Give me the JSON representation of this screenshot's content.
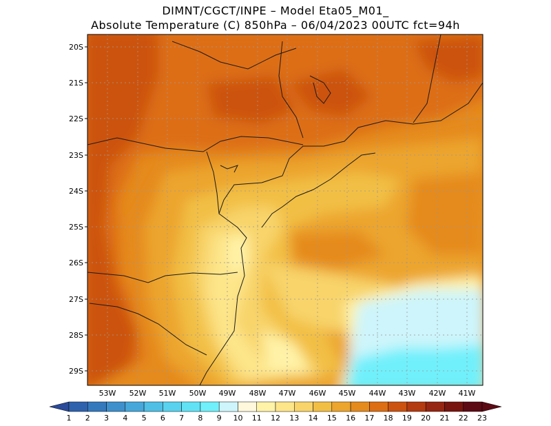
{
  "header": {
    "line1": "DIMNT/CGCT/INPE –  Model Eta05_M01_",
    "line2": "Absolute Temperature (C) 850hPa –  06/04/2023 00UTC fct=94h"
  },
  "map": {
    "lat_labels": [
      "20S",
      "21S",
      "22S",
      "23S",
      "24S",
      "25S",
      "26S",
      "27S",
      "28S",
      "29S"
    ],
    "lon_labels": [
      "53W",
      "52W",
      "51W",
      "50W",
      "49W",
      "48W",
      "47W",
      "46W",
      "45W",
      "44W",
      "43W",
      "42W",
      "41W"
    ]
  },
  "colorbar": {
    "labels": [
      "1",
      "2",
      "3",
      "4",
      "5",
      "6",
      "7",
      "8",
      "9",
      "10",
      "11",
      "12",
      "13",
      "14",
      "15",
      "16",
      "17",
      "18",
      "19",
      "20",
      "21",
      "22",
      "23"
    ],
    "colors": [
      "#2a4a9a",
      "#2f62ad",
      "#3579bd",
      "#3e90cc",
      "#46a7da",
      "#4fbfe6",
      "#58d2ee",
      "#62e2f5",
      "#70f0fb",
      "#cdf5fb",
      "#fff8dc",
      "#fff3a8",
      "#fde58a",
      "#f8d46a",
      "#f2bf45",
      "#eca52d",
      "#e58a1d",
      "#dd6e14",
      "#cc5210",
      "#b43a0f",
      "#962611",
      "#78150f",
      "#5c0a14"
    ]
  }
}
